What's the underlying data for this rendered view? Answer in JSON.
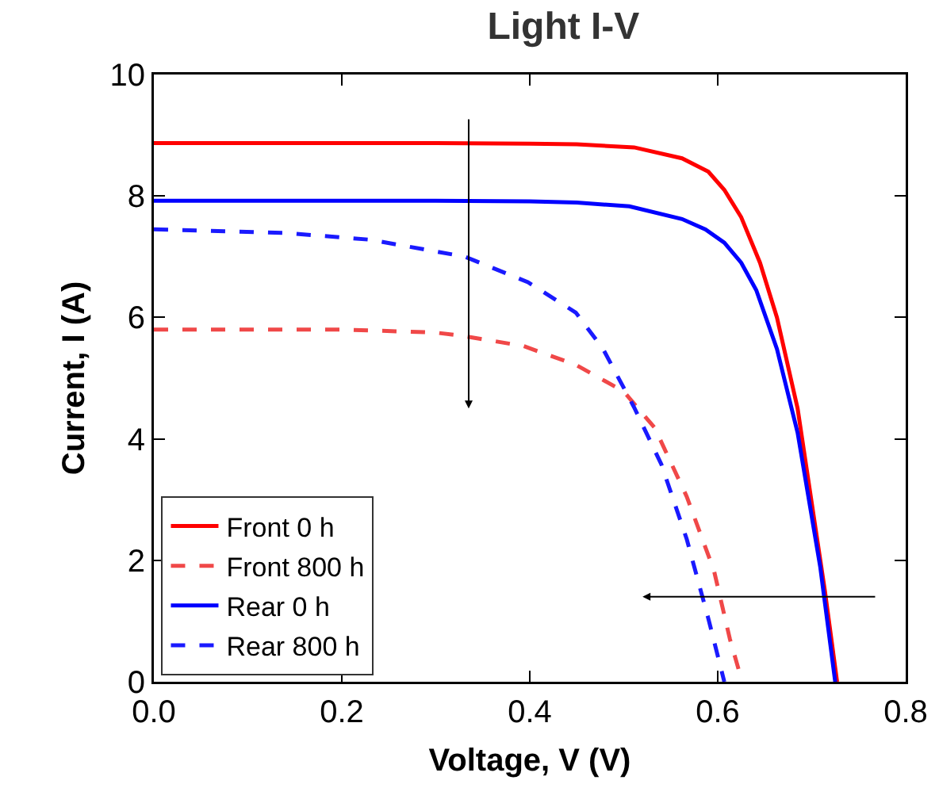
{
  "chart_data": {
    "type": "line",
    "title": "Light I-V",
    "xlabel": "Voltage, V (V)",
    "ylabel": "Current, I (A)",
    "xlim": [
      0,
      0.8
    ],
    "xticks": [
      {
        "value": 0,
        "label": "0.0"
      },
      {
        "value": 0.2,
        "label": "0.2"
      },
      {
        "value": 0.4,
        "label": "0.4"
      },
      {
        "value": 0.6,
        "label": "0.6"
      },
      {
        "value": 0.8,
        "label": "0.8"
      }
    ],
    "ylim": [
      0,
      10
    ],
    "yticks": [
      0,
      2,
      4,
      6,
      8,
      10
    ],
    "grid": false,
    "legend": "bottom left",
    "marker": "none",
    "series": [
      {
        "name": "Front 0 h",
        "color": "#ff0000",
        "line_style": "solid",
        "x": [
          0,
          0.1,
          0.2,
          0.3,
          0.4,
          0.45,
          0.511,
          0.562,
          0.59,
          0.607,
          0.625,
          0.645,
          0.663,
          0.685,
          0.714,
          0.727
        ],
        "values": [
          8.87,
          8.87,
          8.87,
          8.87,
          8.86,
          8.85,
          8.8,
          8.62,
          8.4,
          8.1,
          7.65,
          6.9,
          6.0,
          4.5,
          1.5,
          0
        ]
      },
      {
        "name": "Front 800 h",
        "color": "#f04848",
        "line_style": "dashed",
        "x": [
          0,
          0.1,
          0.2,
          0.3,
          0.331,
          0.393,
          0.449,
          0.5,
          0.533,
          0.567,
          0.596,
          0.613,
          0.626
        ],
        "values": [
          5.8,
          5.8,
          5.8,
          5.75,
          5.69,
          5.53,
          5.22,
          4.78,
          4.18,
          3.05,
          1.83,
          0.7,
          0
        ]
      },
      {
        "name": "Rear 0 h",
        "color": "#0000ff",
        "line_style": "solid",
        "x": [
          0,
          0.1,
          0.2,
          0.3,
          0.4,
          0.45,
          0.506,
          0.562,
          0.587,
          0.607,
          0.625,
          0.641,
          0.663,
          0.685,
          0.709,
          0.725
        ],
        "values": [
          7.92,
          7.92,
          7.92,
          7.92,
          7.91,
          7.89,
          7.83,
          7.62,
          7.45,
          7.23,
          6.9,
          6.45,
          5.48,
          4.1,
          1.9,
          0
        ]
      },
      {
        "name": "Rear 800 h",
        "color": "#1a1aff",
        "line_style": "dashed",
        "x": [
          0,
          0.14,
          0.23,
          0.331,
          0.398,
          0.449,
          0.478,
          0.511,
          0.54,
          0.567,
          0.59,
          0.607
        ],
        "values": [
          7.45,
          7.39,
          7.28,
          7.0,
          6.58,
          6.08,
          5.48,
          4.52,
          3.58,
          2.35,
          1.04,
          0
        ]
      }
    ]
  }
}
